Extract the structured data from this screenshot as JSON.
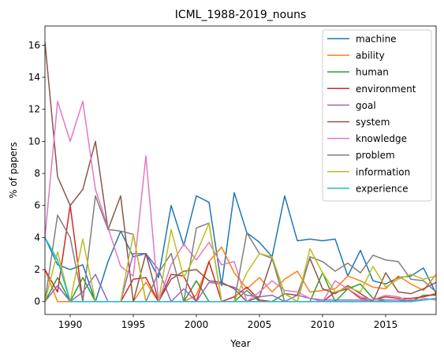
{
  "chart_data": {
    "type": "line",
    "title": "ICML_1988-2019_nouns",
    "xlabel": "Year",
    "ylabel": "% of papers",
    "xlim": [
      1988,
      2019
    ],
    "ylim": [
      -0.8,
      17.2
    ],
    "xticks": [
      1990,
      1995,
      2000,
      2005,
      2010,
      2015
    ],
    "yticks": [
      0,
      2,
      4,
      6,
      8,
      10,
      12,
      14,
      16
    ],
    "legend_position": "top-right",
    "x": [
      1988,
      1989,
      1990,
      1991,
      1992,
      1993,
      1994,
      1995,
      1996,
      1997,
      1998,
      1999,
      2000,
      2001,
      2002,
      2003,
      2004,
      2005,
      2006,
      2007,
      2008,
      2009,
      2010,
      2011,
      2012,
      2013,
      2014,
      2015,
      2016,
      2017,
      2018,
      2019
    ],
    "series": [
      {
        "name": "machine",
        "color": "#1f77b4",
        "values": [
          4.0,
          2.3,
          2.0,
          2.3,
          0.0,
          2.5,
          4.4,
          2.8,
          3.0,
          1.5,
          6.0,
          3.5,
          6.6,
          6.2,
          1.0,
          6.8,
          4.3,
          3.7,
          2.8,
          6.6,
          3.8,
          3.9,
          3.8,
          3.9,
          1.6,
          3.2,
          1.3,
          1.1,
          1.5,
          1.6,
          2.1,
          0.5
        ]
      },
      {
        "name": "ability",
        "color": "#ff7f0e",
        "values": [
          2.0,
          0.0,
          0.0,
          0.0,
          0.0,
          0.0,
          0.0,
          0.0,
          1.2,
          0.0,
          0.0,
          0.0,
          0.4,
          2.5,
          3.4,
          1.8,
          0.8,
          1.5,
          0.6,
          1.4,
          1.9,
          0.6,
          0.7,
          0.8,
          1.6,
          1.3,
          0.9,
          0.8,
          1.6,
          1.1,
          0.7,
          1.7
        ]
      },
      {
        "name": "human",
        "color": "#2ca02c",
        "values": [
          0.0,
          1.5,
          0.0,
          1.5,
          0.0,
          0.0,
          0.0,
          0.0,
          0.0,
          0.0,
          0.0,
          0.0,
          1.3,
          0.0,
          0.0,
          0.0,
          0.7,
          0.0,
          0.0,
          0.5,
          0.0,
          0.0,
          1.8,
          0.0,
          0.8,
          1.1,
          0.2,
          0.1,
          0.1,
          0.0,
          0.4,
          0.4
        ]
      },
      {
        "name": "environment",
        "color": "#d62728",
        "values": [
          2.0,
          0.6,
          6.0,
          0.0,
          0.0,
          0.0,
          0.0,
          1.4,
          1.5,
          0.0,
          1.7,
          1.6,
          0.0,
          2.5,
          0.0,
          0.3,
          0.9,
          0.1,
          0.0,
          0.0,
          0.0,
          0.0,
          0.0,
          0.6,
          0.8,
          0.2,
          0.1,
          0.3,
          0.2,
          0.2,
          0.3,
          0.5
        ]
      },
      {
        "name": "goal",
        "color": "#9467bd",
        "values": [
          0.0,
          1.0,
          0.0,
          0.6,
          1.7,
          0.0,
          0.0,
          3.0,
          3.0,
          2.0,
          0.0,
          0.8,
          0.0,
          1.2,
          1.1,
          0.9,
          0.4,
          0.3,
          0.4,
          0.0,
          0.4,
          0.2,
          0.1,
          0.1,
          0.1,
          0.1,
          0.0,
          0.1,
          0.1,
          0.1,
          0.1,
          0.2
        ]
      },
      {
        "name": "system",
        "color": "#8c564b",
        "values": [
          16.2,
          7.8,
          6.0,
          7.0,
          10.0,
          4.5,
          6.6,
          0.0,
          3.0,
          0.0,
          1.4,
          1.9,
          2.0,
          1.3,
          1.2,
          0.8,
          0.0,
          0.3,
          2.7,
          0.5,
          0.4,
          2.7,
          0.8,
          0.5,
          1.0,
          0.5,
          0.0,
          1.8,
          0.6,
          0.5,
          0.8,
          1.2
        ]
      },
      {
        "name": "knowledge",
        "color": "#e377c2",
        "values": [
          4.0,
          12.5,
          10.0,
          12.5,
          7.0,
          4.6,
          2.2,
          1.6,
          9.1,
          0.0,
          2.3,
          3.6,
          2.6,
          3.7,
          2.3,
          2.5,
          0.0,
          0.6,
          1.3,
          0.7,
          0.6,
          0.2,
          0.0,
          1.3,
          0.8,
          0.3,
          0.1,
          0.4,
          0.3,
          0.0,
          0.2,
          0.1
        ]
      },
      {
        "name": "problem",
        "color": "#7f7f7f",
        "values": [
          0.0,
          5.4,
          4.0,
          0.0,
          6.6,
          4.5,
          4.4,
          4.2,
          0.0,
          1.8,
          3.0,
          0.0,
          4.6,
          4.9,
          0.0,
          0.0,
          4.3,
          3.0,
          2.7,
          0.0,
          0.0,
          2.8,
          2.5,
          1.9,
          2.4,
          1.8,
          2.9,
          2.6,
          2.5,
          1.4,
          1.3,
          0.6
        ]
      },
      {
        "name": "information",
        "color": "#bcbd22",
        "values": [
          0.0,
          3.1,
          0.0,
          3.9,
          0.0,
          0.0,
          0.0,
          4.2,
          0.0,
          0.0,
          4.5,
          1.5,
          3.0,
          4.9,
          0.0,
          0.0,
          1.8,
          3.0,
          2.8,
          0.5,
          0.0,
          3.3,
          1.8,
          0.6,
          0.9,
          0.6,
          2.2,
          0.9,
          1.4,
          1.7,
          1.4,
          1.6
        ]
      },
      {
        "name": "experience",
        "color": "#17becf",
        "values": [
          4.0,
          2.6,
          0.0,
          0.0,
          0.0,
          0.0,
          0.0,
          0.0,
          0.0,
          0.0,
          0.0,
          0.0,
          0.0,
          0.0,
          0.0,
          0.0,
          0.0,
          0.0,
          0.0,
          0.0,
          0.0,
          0.0,
          0.0,
          0.0,
          0.0,
          0.0,
          0.0,
          0.0,
          0.0,
          0.0,
          0.1,
          0.2
        ]
      }
    ]
  }
}
